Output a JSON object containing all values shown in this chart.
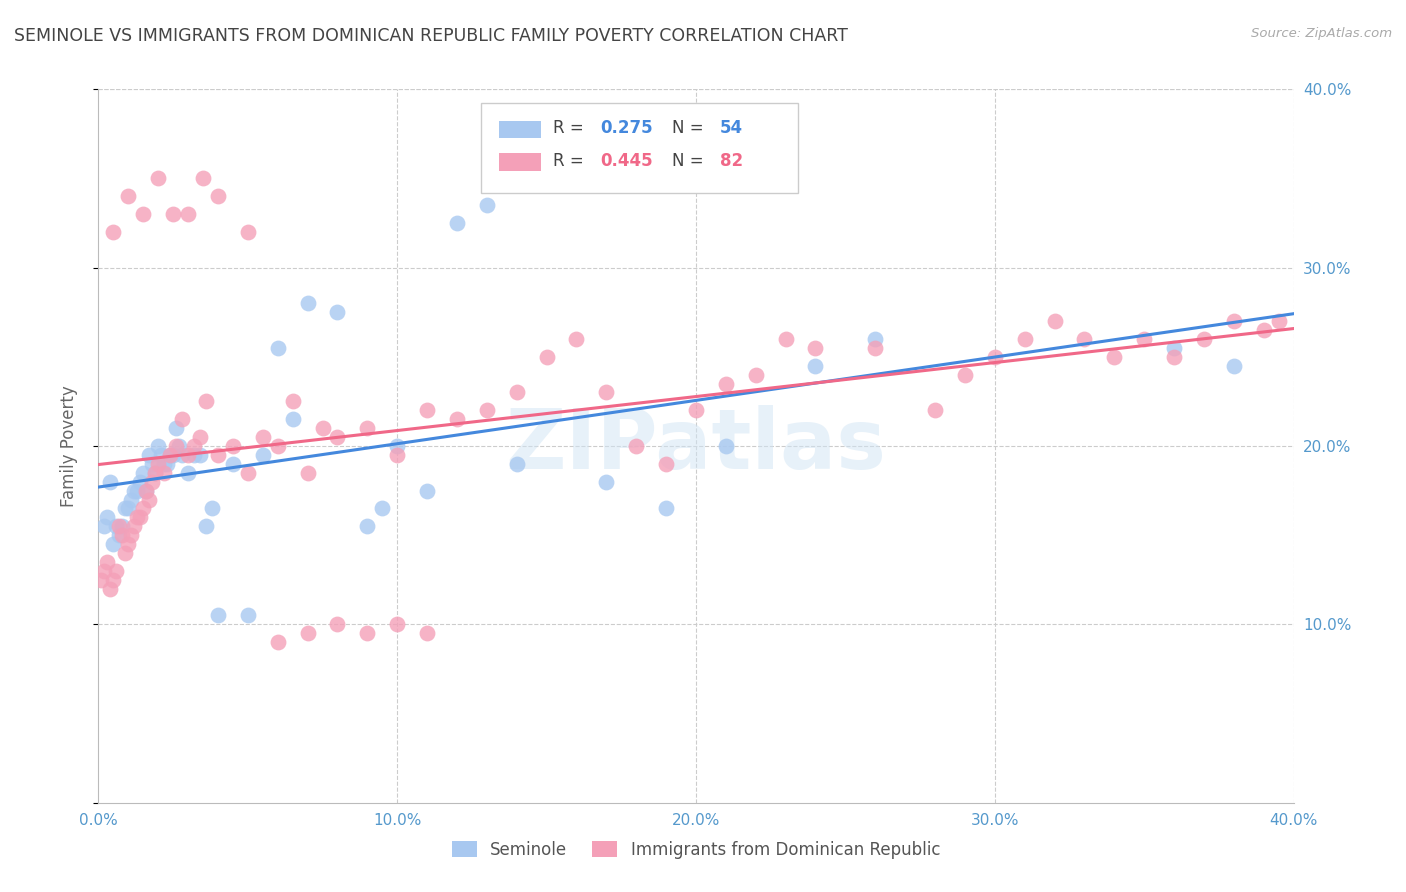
{
  "title": "SEMINOLE VS IMMIGRANTS FROM DOMINICAN REPUBLIC FAMILY POVERTY CORRELATION CHART",
  "source": "Source: ZipAtlas.com",
  "ylabel": "Family Poverty",
  "xlim": [
    0.0,
    0.4
  ],
  "ylim": [
    0.0,
    0.4
  ],
  "xticks": [
    0.0,
    0.1,
    0.2,
    0.3,
    0.4
  ],
  "yticks": [
    0.0,
    0.1,
    0.2,
    0.3,
    0.4
  ],
  "legend_label1": "Seminole",
  "legend_label2": "Immigrants from Dominican Republic",
  "R1": 0.275,
  "N1": 54,
  "R2": 0.445,
  "N2": 82,
  "color1": "#a8c8f0",
  "color2": "#f4a0b8",
  "line_color1": "#4488dd",
  "line_color2": "#f06888",
  "watermark": "ZIPatlas",
  "title_color": "#444444",
  "axis_tick_color": "#5599cc",
  "seminole_x": [
    0.002,
    0.003,
    0.004,
    0.005,
    0.006,
    0.007,
    0.008,
    0.009,
    0.01,
    0.011,
    0.012,
    0.013,
    0.014,
    0.015,
    0.016,
    0.017,
    0.018,
    0.019,
    0.02,
    0.021,
    0.022,
    0.023,
    0.024,
    0.025,
    0.026,
    0.027,
    0.028,
    0.03,
    0.032,
    0.034,
    0.036,
    0.038,
    0.04,
    0.045,
    0.05,
    0.055,
    0.06,
    0.065,
    0.07,
    0.08,
    0.09,
    0.095,
    0.1,
    0.11,
    0.12,
    0.13,
    0.14,
    0.17,
    0.19,
    0.21,
    0.24,
    0.26,
    0.36,
    0.38
  ],
  "seminole_y": [
    0.155,
    0.16,
    0.18,
    0.145,
    0.155,
    0.15,
    0.155,
    0.165,
    0.165,
    0.17,
    0.175,
    0.175,
    0.18,
    0.185,
    0.175,
    0.195,
    0.19,
    0.185,
    0.2,
    0.195,
    0.19,
    0.19,
    0.195,
    0.195,
    0.21,
    0.2,
    0.195,
    0.185,
    0.195,
    0.195,
    0.155,
    0.165,
    0.105,
    0.19,
    0.105,
    0.195,
    0.255,
    0.215,
    0.28,
    0.275,
    0.155,
    0.165,
    0.2,
    0.175,
    0.325,
    0.335,
    0.19,
    0.18,
    0.165,
    0.2,
    0.245,
    0.26,
    0.255,
    0.245
  ],
  "immigrant_x": [
    0.001,
    0.002,
    0.003,
    0.004,
    0.005,
    0.006,
    0.007,
    0.008,
    0.009,
    0.01,
    0.011,
    0.012,
    0.013,
    0.014,
    0.015,
    0.016,
    0.017,
    0.018,
    0.019,
    0.02,
    0.022,
    0.024,
    0.026,
    0.028,
    0.03,
    0.032,
    0.034,
    0.036,
    0.04,
    0.045,
    0.05,
    0.055,
    0.06,
    0.065,
    0.07,
    0.075,
    0.08,
    0.09,
    0.1,
    0.11,
    0.12,
    0.13,
    0.14,
    0.15,
    0.16,
    0.17,
    0.18,
    0.19,
    0.2,
    0.21,
    0.22,
    0.23,
    0.24,
    0.26,
    0.28,
    0.29,
    0.3,
    0.31,
    0.32,
    0.33,
    0.34,
    0.35,
    0.36,
    0.37,
    0.38,
    0.39,
    0.395,
    0.005,
    0.01,
    0.015,
    0.02,
    0.025,
    0.03,
    0.035,
    0.04,
    0.05,
    0.06,
    0.07,
    0.08,
    0.09,
    0.1,
    0.11
  ],
  "immigrant_y": [
    0.125,
    0.13,
    0.135,
    0.12,
    0.125,
    0.13,
    0.155,
    0.15,
    0.14,
    0.145,
    0.15,
    0.155,
    0.16,
    0.16,
    0.165,
    0.175,
    0.17,
    0.18,
    0.185,
    0.19,
    0.185,
    0.195,
    0.2,
    0.215,
    0.195,
    0.2,
    0.205,
    0.225,
    0.195,
    0.2,
    0.185,
    0.205,
    0.2,
    0.225,
    0.185,
    0.21,
    0.205,
    0.21,
    0.195,
    0.22,
    0.215,
    0.22,
    0.23,
    0.25,
    0.26,
    0.23,
    0.2,
    0.19,
    0.22,
    0.235,
    0.24,
    0.26,
    0.255,
    0.255,
    0.22,
    0.24,
    0.25,
    0.26,
    0.27,
    0.26,
    0.25,
    0.26,
    0.25,
    0.26,
    0.27,
    0.265,
    0.27,
    0.32,
    0.34,
    0.33,
    0.35,
    0.33,
    0.33,
    0.35,
    0.34,
    0.32,
    0.09,
    0.095,
    0.1,
    0.095,
    0.1,
    0.095
  ]
}
